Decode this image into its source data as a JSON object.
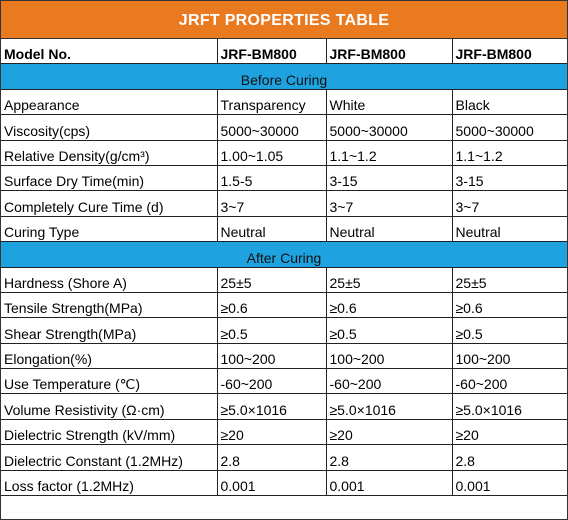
{
  "title": "JRFT PROPERTIES TABLE",
  "header": [
    "Model No.",
    "JRF-BM800",
    "JRF-BM800",
    "JRF-BM800"
  ],
  "sections": [
    {
      "title": "Before Curing",
      "rows": [
        [
          "Appearance",
          "Transparency",
          "White",
          "Black"
        ],
        [
          "Viscosity(cps)",
          "5000~30000",
          "5000~30000",
          "5000~30000"
        ],
        [
          "Relative Density(g/cm³)",
          "1.00~1.05",
          "1.1~1.2",
          "1.1~1.2"
        ],
        [
          "Surface Dry Time(min)",
          "1.5-5",
          "3-15",
          "3-15"
        ],
        [
          "Completely Cure Time (d)",
          "3~7",
          "3~7",
          "3~7"
        ],
        [
          "Curing Type",
          "Neutral",
          "Neutral",
          "Neutral"
        ]
      ]
    },
    {
      "title": "After Curing",
      "rows": [
        [
          "Hardness (Shore A)",
          "25±5",
          "25±5",
          "25±5"
        ],
        [
          "Tensile Strength(MPa)",
          "≥0.6",
          "≥0.6",
          "≥0.6"
        ],
        [
          "Shear Strength(MPa)",
          "≥0.5",
          "≥0.5",
          "≥0.5"
        ],
        [
          "Elongation(%)",
          "100~200",
          "100~200",
          "100~200"
        ],
        [
          "Use Temperature (℃)",
          "-60~200",
          "-60~200",
          "-60~200"
        ],
        [
          "Volume Resistivity (Ω·cm)",
          "≥5.0×1016",
          "≥5.0×1016",
          "≥5.0×1016"
        ],
        [
          "Dielectric Strength (kV/mm)",
          "≥20",
          "≥20",
          "≥20"
        ],
        [
          "Dielectric Constant (1.2MHz)",
          "2.8",
          "2.8",
          "2.8"
        ],
        [
          "Loss factor (1.2MHz)",
          "0.001",
          "0.001",
          "0.001"
        ]
      ]
    }
  ]
}
